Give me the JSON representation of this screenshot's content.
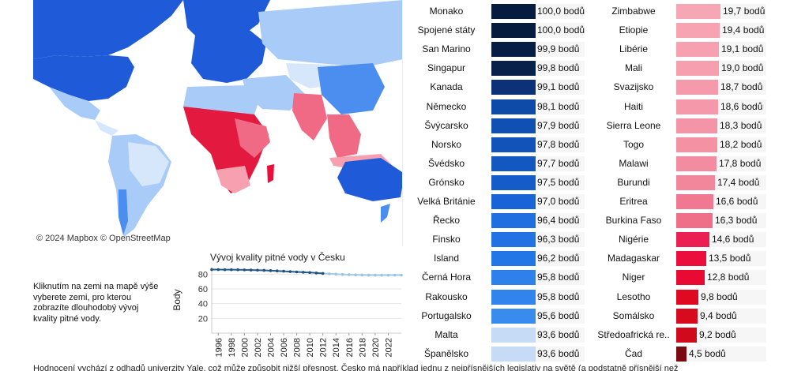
{
  "map": {
    "attribution": "© 2024 Mapbox  © OpenStreetMap",
    "colors": {
      "high": "#1f5bd8",
      "mid": "#4c8ef0",
      "light": "#a9cbf7",
      "pale": "#d6e6fb",
      "low": "#f06a86",
      "lowest": "#e3193f",
      "land_none": "#e6e6e6"
    }
  },
  "hint": "Kliknutím na zemi na mapě výše vyberete zemi, pro kterou zobrazíte dlouhodobý vývoj kvality pitné vody.",
  "trend": {
    "title": "Vývoj kvality pitné vody v Česku",
    "chart_data": {
      "type": "line",
      "ylabel": "Body",
      "x": [
        1995,
        1996,
        1997,
        1998,
        1999,
        2000,
        2001,
        2002,
        2003,
        2004,
        2005,
        2006,
        2007,
        2008,
        2009,
        2010,
        2011,
        2012,
        2013,
        2014,
        2015,
        2016,
        2017,
        2018,
        2019,
        2020,
        2021,
        2022,
        2023,
        2024
      ],
      "values": [
        86.2,
        86.2,
        86.1,
        86.1,
        86.0,
        85.8,
        85.6,
        85.4,
        85.2,
        84.8,
        84.4,
        84.0,
        83.5,
        83.0,
        82.6,
        82.2,
        81.6,
        81.0,
        80.5,
        80.0,
        79.6,
        79.3,
        79.0,
        78.8,
        78.7,
        78.6,
        78.6,
        78.6,
        78.7,
        78.7
      ],
      "highlighted_until": 2012,
      "yticks": [
        20,
        40,
        60,
        80
      ],
      "xticks": [
        "1996",
        "1998",
        "2000",
        "2002",
        "2004",
        "2006",
        "2008",
        "2010",
        "2012",
        "2014",
        "2016",
        "2018",
        "2020",
        "2022"
      ],
      "ylim": [
        0,
        90
      ]
    }
  },
  "left_list": [
    {
      "name": "Monako",
      "value": 100.0,
      "label": "100,0 bodů",
      "color": "#061c3f"
    },
    {
      "name": "Spojené státy",
      "value": 100.0,
      "label": "100,0 bodů",
      "color": "#061c3f"
    },
    {
      "name": "San Marino",
      "value": 99.9,
      "label": "99,9 bodů",
      "color": "#071e44"
    },
    {
      "name": "Singapur",
      "value": 99.8,
      "label": "99,8 bodů",
      "color": "#08214a"
    },
    {
      "name": "Kanada",
      "value": 99.1,
      "label": "99,1 bodů",
      "color": "#0b3278"
    },
    {
      "name": "Německo",
      "value": 98.1,
      "label": "98,1 bodů",
      "color": "#0e4aa7"
    },
    {
      "name": "Švýcarsko",
      "value": 97.9,
      "label": "97,9 bodů",
      "color": "#1050b2"
    },
    {
      "name": "Norsko",
      "value": 97.8,
      "label": "97,8 bodů",
      "color": "#1153b8"
    },
    {
      "name": "Švédsko",
      "value": 97.7,
      "label": "97,7 bodů",
      "color": "#1357c0"
    },
    {
      "name": "Grónsko",
      "value": 97.5,
      "label": "97,5 bodů",
      "color": "#155cc8"
    },
    {
      "name": "Velká Británie",
      "value": 97.0,
      "label": "97,0 bodů",
      "color": "#1864d6"
    },
    {
      "name": "Řecko",
      "value": 96.4,
      "label": "96,4 bodů",
      "color": "#1f6fe0"
    },
    {
      "name": "Finsko",
      "value": 96.3,
      "label": "96,3 bodů",
      "color": "#2173e3"
    },
    {
      "name": "Island",
      "value": 96.2,
      "label": "96,2 bodů",
      "color": "#2376e6"
    },
    {
      "name": "Černá Hora",
      "value": 95.8,
      "label": "95,8 bodů",
      "color": "#2e80ea"
    },
    {
      "name": "Rakousko",
      "value": 95.8,
      "label": "95,8 bodů",
      "color": "#3184eb"
    },
    {
      "name": "Portugalsko",
      "value": 95.6,
      "label": "95,6 bodů",
      "color": "#3a8bee"
    },
    {
      "name": "Malta",
      "value": 93.6,
      "label": "93,6 bodů",
      "color": "#c6dcf6"
    },
    {
      "name": "Španělsko",
      "value": 93.6,
      "label": "93,6 bodů",
      "color": "#c6dcf6"
    }
  ],
  "right_list": [
    {
      "name": "Zimbabwe",
      "value": 19.7,
      "label": "19,7 bodů",
      "color": "#f7a6b5"
    },
    {
      "name": "Etiopie",
      "value": 19.4,
      "label": "19,4 bodů",
      "color": "#f7a3b2"
    },
    {
      "name": "Libérie",
      "value": 19.1,
      "label": "19,1 bodů",
      "color": "#f6a0b0"
    },
    {
      "name": "Mali",
      "value": 19.0,
      "label": "19,0 bodů",
      "color": "#f69fae"
    },
    {
      "name": "Svazijsko",
      "value": 18.7,
      "label": "18,7 bodů",
      "color": "#f59aab"
    },
    {
      "name": "Haiti",
      "value": 18.6,
      "label": "18,6 bodů",
      "color": "#f598a9"
    },
    {
      "name": "Sierra Leone",
      "value": 18.3,
      "label": "18,3 bodů",
      "color": "#f494a6"
    },
    {
      "name": "Togo",
      "value": 18.2,
      "label": "18,2 bodů",
      "color": "#f492a4"
    },
    {
      "name": "Malawi",
      "value": 17.8,
      "label": "17,8 bodů",
      "color": "#f38ca0"
    },
    {
      "name": "Burundi",
      "value": 17.4,
      "label": "17,4 bodů",
      "color": "#f2869b"
    },
    {
      "name": "Eritrea",
      "value": 16.6,
      "label": "16,6 bodů",
      "color": "#f07890"
    },
    {
      "name": "Burkina Faso",
      "value": 16.3,
      "label": "16,3 bodů",
      "color": "#ef6f89"
    },
    {
      "name": "Nigérie",
      "value": 14.6,
      "label": "14,6 bodů",
      "color": "#ec1f52"
    },
    {
      "name": "Madagaskar",
      "value": 13.5,
      "label": "13,5 bodů",
      "color": "#eb0d3c"
    },
    {
      "name": "Niger",
      "value": 12.8,
      "label": "12,8 bodů",
      "color": "#e80a32"
    },
    {
      "name": "Lesotho",
      "value": 9.8,
      "label": "9,8 bodů",
      "color": "#df0a22"
    },
    {
      "name": "Somálsko",
      "value": 9.4,
      "label": "9,4 bodů",
      "color": "#d80a1e"
    },
    {
      "name": "Středoafrická re..",
      "value": 9.2,
      "label": "9,2 bodů",
      "color": "#d00a1c"
    },
    {
      "name": "Čad",
      "value": 4.5,
      "label": "4,5 bodů",
      "color": "#7a0a10"
    }
  ],
  "footer": "Hodnocení vychází z odhadů univerzity Yale, což může způsobit nižší přesnost. Česko má například jednu z nejpřísnějších legislativ na světě (a podstatně přísnější než"
}
